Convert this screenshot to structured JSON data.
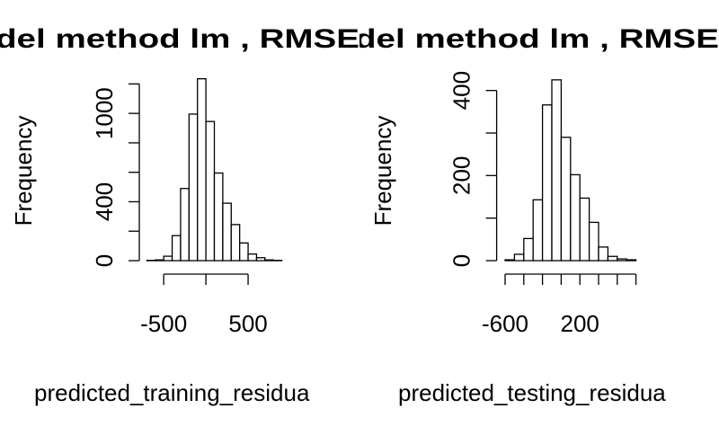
{
  "chart_data": [
    {
      "type": "histogram",
      "title": "del method lm , RMSE",
      "xlabel": "predicted_training_residua",
      "ylabel": "Frequency",
      "bins": [
        -700,
        -600,
        -500,
        -400,
        -300,
        -200,
        -100,
        0,
        100,
        200,
        300,
        400,
        500,
        600,
        700,
        800,
        900
      ],
      "values": [
        2,
        5,
        30,
        170,
        490,
        995,
        1235,
        945,
        595,
        390,
        245,
        120,
        45,
        20,
        5,
        2
      ],
      "color": "#ffffff",
      "xlim": [
        -800,
        1000
      ],
      "xticks": [
        -500,
        500
      ],
      "minor_xticks": [
        0
      ],
      "ylim": [
        0,
        1300
      ],
      "yticks": [
        0,
        400,
        1000
      ],
      "minor_yticks": [
        200,
        600,
        800,
        1200
      ]
    },
    {
      "type": "histogram",
      "title": "del method lm , RMSE",
      "xlabel": "predicted_testing_residua",
      "ylabel": "Frequency",
      "bins": [
        -600,
        -500,
        -400,
        -300,
        -200,
        -100,
        0,
        100,
        200,
        300,
        400,
        500,
        600,
        700,
        800
      ],
      "values": [
        2,
        15,
        52,
        143,
        366,
        425,
        290,
        202,
        147,
        90,
        32,
        10,
        4,
        2
      ],
      "color": "#ffffff",
      "xlim": [
        -700,
        900
      ],
      "xticks": [
        -600,
        200
      ],
      "minor_xticks": [
        -400,
        -200,
        0,
        400,
        600,
        800
      ],
      "ylim": [
        0,
        450
      ],
      "yticks": [
        0,
        200,
        400
      ],
      "minor_yticks": [
        100,
        300
      ]
    }
  ]
}
